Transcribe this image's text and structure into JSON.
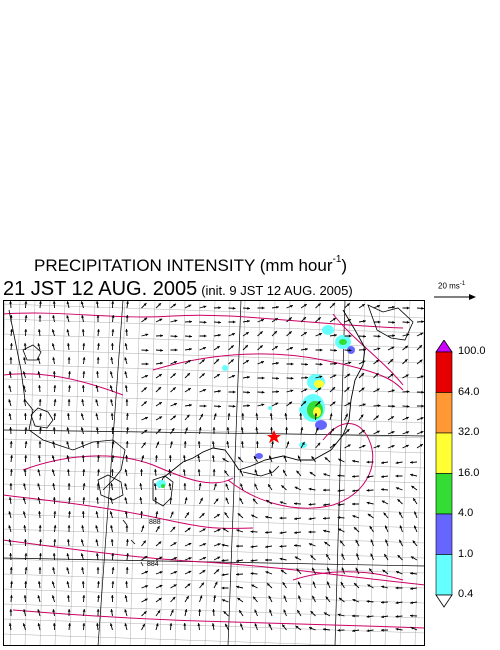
{
  "title": {
    "main": "PRECIPITATION INTENSITY (mm hour",
    "superscript": "-1",
    "close": ")"
  },
  "datetime": {
    "valid": "21 JST 12 AUG. 2005",
    "init": "(init. 9 JST 12 AUG. 2005)"
  },
  "reference_vector": {
    "label": "20 ms",
    "superscript": "-1"
  },
  "map": {
    "description_type": "precipitation + wind vector field map over Japan",
    "marker": {
      "type": "star",
      "color": "#ff0000"
    },
    "contour_labels": [
      "888",
      "884"
    ],
    "line_colors": {
      "contour": "#cc0066",
      "coast": "#000000",
      "grid": "#999999",
      "frame": "#000000"
    }
  },
  "legend": {
    "labels": [
      "100.0",
      "64.0",
      "32.0",
      "16.0",
      "4.0",
      "1.0",
      "0.4"
    ],
    "colors": [
      "#cc00ff",
      "#e60000",
      "#ff9933",
      "#ffff33",
      "#33dd33",
      "#6666ff",
      "#66ffff",
      "#ffffff"
    ]
  }
}
